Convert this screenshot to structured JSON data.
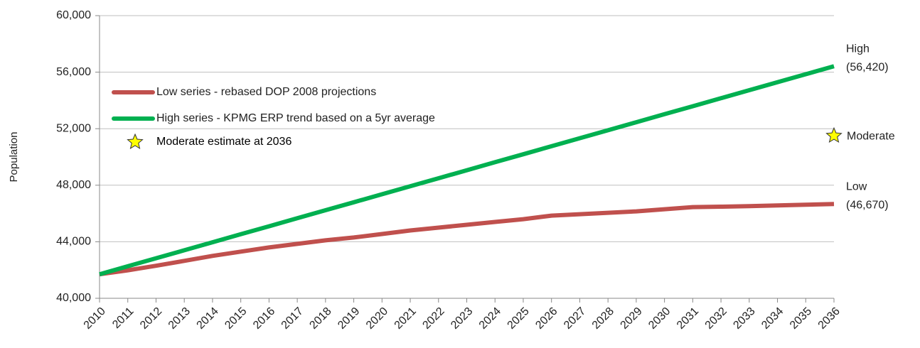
{
  "chart_data": {
    "type": "line",
    "y_label": "Population",
    "x": [
      2010,
      2011,
      2012,
      2013,
      2014,
      2015,
      2016,
      2017,
      2018,
      2019,
      2020,
      2021,
      2022,
      2023,
      2024,
      2025,
      2026,
      2027,
      2028,
      2029,
      2030,
      2031,
      2032,
      2033,
      2034,
      2035,
      2036
    ],
    "xlim": [
      2010,
      2036
    ],
    "xticks": [
      2010,
      2011,
      2012,
      2013,
      2014,
      2015,
      2016,
      2017,
      2018,
      2019,
      2020,
      2021,
      2022,
      2023,
      2024,
      2025,
      2026,
      2027,
      2028,
      2029,
      2030,
      2031,
      2032,
      2033,
      2034,
      2035,
      2036
    ],
    "ylim": [
      40000,
      60000
    ],
    "yticks": [
      {
        "value": 40000,
        "label": "40,000"
      },
      {
        "value": 44000,
        "label": "44,000"
      },
      {
        "value": 48000,
        "label": "48,000"
      },
      {
        "value": 52000,
        "label": "52,000"
      },
      {
        "value": 56000,
        "label": "56,000"
      },
      {
        "value": 60000,
        "label": "60,000"
      }
    ],
    "grid": true,
    "legend": "upper left",
    "series": [
      {
        "name": "Low series - rebased DOP 2008 projections",
        "color": "#c0504d",
        "label": "Low",
        "values": [
          41700,
          41980,
          42300,
          42650,
          43000,
          43300,
          43600,
          43850,
          44100,
          44300,
          44550,
          44800,
          45000,
          45200,
          45400,
          45600,
          45850,
          45950,
          46050,
          46150,
          46300,
          46450,
          46480,
          46520,
          46570,
          46620,
          46670
        ],
        "value_labels": [
          null,
          null,
          null,
          null,
          null,
          null,
          null,
          null,
          null,
          null,
          null,
          null,
          null,
          null,
          null,
          null,
          null,
          null,
          null,
          null,
          null,
          null,
          null,
          null,
          null,
          null,
          "(46,670)"
        ]
      },
      {
        "name": "High series - KPMG ERP trend based on a 5yr average",
        "color": "#00b050",
        "label": "High",
        "values": [
          41700,
          42266,
          42832,
          43398,
          43965,
          44531,
          45097,
          45663,
          46229,
          46795,
          47362,
          47928,
          48494,
          49060,
          49626,
          50192,
          50758,
          51325,
          51891,
          52457,
          53023,
          53589,
          54155,
          54722,
          55288,
          55854,
          56420
        ],
        "value_labels": [
          null,
          null,
          null,
          null,
          null,
          null,
          null,
          null,
          null,
          null,
          null,
          null,
          null,
          null,
          null,
          null,
          null,
          null,
          null,
          null,
          null,
          null,
          null,
          null,
          null,
          null,
          "(56,420)"
        ]
      }
    ],
    "markers": [
      {
        "name": "Moderate estimate at 2036",
        "label": "Moderate",
        "x": 2036,
        "value": 51500,
        "color": "#ffff00"
      }
    ]
  }
}
